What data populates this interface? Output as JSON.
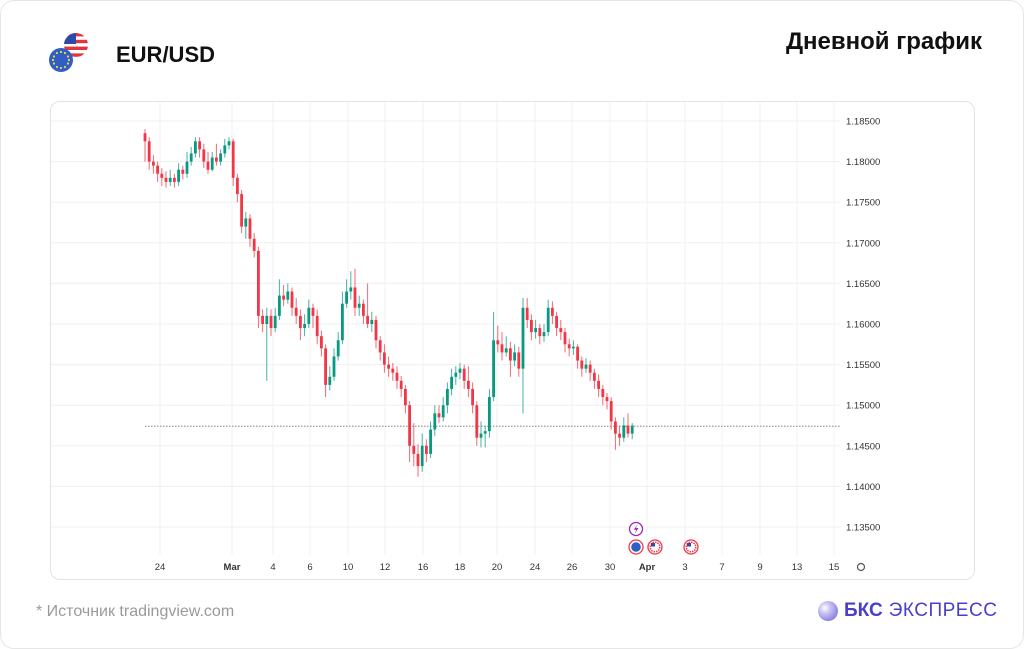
{
  "header": {
    "pair": "EUR/USD",
    "title": "Дневной график",
    "flags_icon": "eur-usd-flags-icon"
  },
  "footer": {
    "source": "*  Источник tradingview.com",
    "brand_bold": "БКС",
    "brand_rest": "ЭКСПРЕСС"
  },
  "colors": {
    "up": "#089981",
    "down": "#f23645",
    "grid": "#f0f0f0",
    "brand": "#4b3fc6"
  },
  "chart_data": {
    "type": "candlestick",
    "title": "EUR/USD",
    "ylim": [
      1.132,
      1.1875
    ],
    "y_ticks": [
      "1.18500",
      "1.18000",
      "1.17500",
      "1.17000",
      "1.16500",
      "1.16000",
      "1.15500",
      "1.15000",
      "1.14500",
      "1.14000",
      "1.13500"
    ],
    "y_tick_values": [
      1.185,
      1.18,
      1.175,
      1.17,
      1.165,
      1.16,
      1.155,
      1.15,
      1.145,
      1.14,
      1.135
    ],
    "x_ticks": [
      "24",
      "Mar",
      "4",
      "6",
      "10",
      "12",
      "16",
      "18",
      "20",
      "24",
      "26",
      "30",
      "Apr",
      "3",
      "7",
      "9",
      "13",
      "15"
    ],
    "current_price": 1.1474,
    "events": [
      {
        "type": "lightning",
        "count": 1
      },
      {
        "type": "eur",
        "count": 1
      },
      {
        "type": "usd",
        "count": 2
      }
    ],
    "candles": [
      [
        1.1835,
        1.184,
        1.18,
        1.1825
      ],
      [
        1.1825,
        1.183,
        1.179,
        1.18
      ],
      [
        1.18,
        1.1808,
        1.1785,
        1.1795
      ],
      [
        1.1795,
        1.18,
        1.1775,
        1.1785
      ],
      [
        1.1785,
        1.1792,
        1.177,
        1.178
      ],
      [
        1.178,
        1.1788,
        1.1768,
        1.1775
      ],
      [
        1.1775,
        1.179,
        1.177,
        1.178
      ],
      [
        1.178,
        1.1785,
        1.1768,
        1.1775
      ],
      [
        1.1775,
        1.1798,
        1.177,
        1.179
      ],
      [
        1.179,
        1.1795,
        1.1778,
        1.1785
      ],
      [
        1.1785,
        1.1812,
        1.178,
        1.18
      ],
      [
        1.18,
        1.1818,
        1.1795,
        1.181
      ],
      [
        1.181,
        1.183,
        1.1805,
        1.1825
      ],
      [
        1.1825,
        1.183,
        1.1805,
        1.1815
      ],
      [
        1.1815,
        1.1822,
        1.1792,
        1.18
      ],
      [
        1.18,
        1.1812,
        1.1785,
        1.179
      ],
      [
        1.179,
        1.1812,
        1.1788,
        1.1805
      ],
      [
        1.1805,
        1.1822,
        1.1795,
        1.18
      ],
      [
        1.18,
        1.1815,
        1.1795,
        1.181
      ],
      [
        1.181,
        1.1828,
        1.1805,
        1.182
      ],
      [
        1.182,
        1.183,
        1.1815,
        1.1825
      ],
      [
        1.1825,
        1.1828,
        1.177,
        1.178
      ],
      [
        1.178,
        1.1785,
        1.175,
        1.176
      ],
      [
        1.176,
        1.1765,
        1.1712,
        1.172
      ],
      [
        1.172,
        1.1738,
        1.1705,
        1.173
      ],
      [
        1.173,
        1.1735,
        1.1695,
        1.1705
      ],
      [
        1.1705,
        1.1712,
        1.1682,
        1.169
      ],
      [
        1.169,
        1.1695,
        1.1595,
        1.161
      ],
      [
        1.161,
        1.1618,
        1.159,
        1.16
      ],
      [
        1.16,
        1.162,
        1.153,
        1.161
      ],
      [
        1.161,
        1.1618,
        1.1585,
        1.1595
      ],
      [
        1.1595,
        1.162,
        1.159,
        1.161
      ],
      [
        1.161,
        1.1655,
        1.1605,
        1.1635
      ],
      [
        1.1635,
        1.1648,
        1.1622,
        1.163
      ],
      [
        1.163,
        1.165,
        1.1625,
        1.164
      ],
      [
        1.164,
        1.1645,
        1.161,
        1.162
      ],
      [
        1.162,
        1.1632,
        1.16,
        1.161
      ],
      [
        1.161,
        1.1618,
        1.158,
        1.1595
      ],
      [
        1.1595,
        1.1612,
        1.1585,
        1.16
      ],
      [
        1.16,
        1.163,
        1.1595,
        1.162
      ],
      [
        1.162,
        1.1625,
        1.1595,
        1.161
      ],
      [
        1.161,
        1.1618,
        1.1575,
        1.1585
      ],
      [
        1.1585,
        1.1592,
        1.156,
        1.157
      ],
      [
        1.157,
        1.1575,
        1.151,
        1.1525
      ],
      [
        1.1525,
        1.1548,
        1.1518,
        1.1535
      ],
      [
        1.1535,
        1.157,
        1.153,
        1.156
      ],
      [
        1.156,
        1.159,
        1.1555,
        1.158
      ],
      [
        1.158,
        1.164,
        1.1575,
        1.1625
      ],
      [
        1.1625,
        1.1655,
        1.162,
        1.164
      ],
      [
        1.164,
        1.1665,
        1.163,
        1.1645
      ],
      [
        1.1645,
        1.1668,
        1.161,
        1.162
      ],
      [
        1.162,
        1.1635,
        1.161,
        1.1625
      ],
      [
        1.1625,
        1.163,
        1.16,
        1.161
      ],
      [
        1.161,
        1.165,
        1.1595,
        1.16
      ],
      [
        1.16,
        1.1615,
        1.159,
        1.1605
      ],
      [
        1.1605,
        1.161,
        1.157,
        1.158
      ],
      [
        1.158,
        1.1585,
        1.1555,
        1.1565
      ],
      [
        1.1565,
        1.1575,
        1.154,
        1.155
      ],
      [
        1.155,
        1.156,
        1.1535,
        1.1545
      ],
      [
        1.1545,
        1.1552,
        1.153,
        1.154
      ],
      [
        1.154,
        1.1548,
        1.152,
        1.153
      ],
      [
        1.153,
        1.1536,
        1.151,
        1.152
      ],
      [
        1.152,
        1.1525,
        1.149,
        1.15
      ],
      [
        1.15,
        1.1505,
        1.143,
        1.145
      ],
      [
        1.145,
        1.1478,
        1.1425,
        1.144
      ],
      [
        1.144,
        1.1452,
        1.1412,
        1.1425
      ],
      [
        1.1425,
        1.1465,
        1.1418,
        1.145
      ],
      [
        1.145,
        1.1458,
        1.143,
        1.144
      ],
      [
        1.144,
        1.148,
        1.1435,
        1.147
      ],
      [
        1.147,
        1.15,
        1.1462,
        1.149
      ],
      [
        1.149,
        1.15,
        1.1478,
        1.1485
      ],
      [
        1.1485,
        1.151,
        1.148,
        1.15
      ],
      [
        1.15,
        1.1528,
        1.149,
        1.152
      ],
      [
        1.152,
        1.1545,
        1.1512,
        1.1535
      ],
      [
        1.1535,
        1.1548,
        1.1525,
        1.154
      ],
      [
        1.154,
        1.1552,
        1.1532,
        1.1545
      ],
      [
        1.1545,
        1.155,
        1.152,
        1.153
      ],
      [
        1.153,
        1.1548,
        1.151,
        1.152
      ],
      [
        1.152,
        1.1528,
        1.149,
        1.15
      ],
      [
        1.15,
        1.1505,
        1.145,
        1.146
      ],
      [
        1.146,
        1.148,
        1.1448,
        1.1465
      ],
      [
        1.1465,
        1.1475,
        1.1448,
        1.1468
      ],
      [
        1.1468,
        1.152,
        1.146,
        1.151
      ],
      [
        1.151,
        1.1615,
        1.1505,
        1.158
      ],
      [
        1.158,
        1.1598,
        1.1565,
        1.1575
      ],
      [
        1.1575,
        1.159,
        1.1555,
        1.1565
      ],
      [
        1.1565,
        1.1585,
        1.156,
        1.157
      ],
      [
        1.157,
        1.1578,
        1.1535,
        1.1555
      ],
      [
        1.1555,
        1.1575,
        1.1548,
        1.1565
      ],
      [
        1.1565,
        1.1572,
        1.1535,
        1.1545
      ],
      [
        1.1545,
        1.1632,
        1.149,
        1.162
      ],
      [
        1.162,
        1.1632,
        1.1595,
        1.1605
      ],
      [
        1.1605,
        1.1612,
        1.158,
        1.159
      ],
      [
        1.159,
        1.1605,
        1.1582,
        1.1595
      ],
      [
        1.1595,
        1.16,
        1.1575,
        1.1585
      ],
      [
        1.1585,
        1.16,
        1.1578,
        1.159
      ],
      [
        1.159,
        1.163,
        1.1585,
        1.162
      ],
      [
        1.162,
        1.1628,
        1.16,
        1.161
      ],
      [
        1.161,
        1.1615,
        1.1585,
        1.1595
      ],
      [
        1.1595,
        1.1605,
        1.158,
        1.159
      ],
      [
        1.159,
        1.1595,
        1.1565,
        1.1575
      ],
      [
        1.1575,
        1.1582,
        1.156,
        1.157
      ],
      [
        1.157,
        1.158,
        1.1562,
        1.1572
      ],
      [
        1.1572,
        1.1575,
        1.1545,
        1.1555
      ],
      [
        1.1555,
        1.156,
        1.1535,
        1.1545
      ],
      [
        1.1545,
        1.1558,
        1.154,
        1.155
      ],
      [
        1.155,
        1.1555,
        1.153,
        1.154
      ],
      [
        1.154,
        1.1545,
        1.152,
        1.153
      ],
      [
        1.153,
        1.1538,
        1.151,
        1.152
      ],
      [
        1.152,
        1.1525,
        1.15,
        1.151
      ],
      [
        1.151,
        1.1515,
        1.1495,
        1.1505
      ],
      [
        1.1505,
        1.151,
        1.147,
        1.148
      ],
      [
        1.148,
        1.1485,
        1.1445,
        1.1465
      ],
      [
        1.1465,
        1.1475,
        1.145,
        1.146
      ],
      [
        1.146,
        1.1485,
        1.1455,
        1.1475
      ],
      [
        1.1475,
        1.149,
        1.146,
        1.1465
      ],
      [
        1.1465,
        1.1478,
        1.1458,
        1.1475
      ]
    ]
  }
}
